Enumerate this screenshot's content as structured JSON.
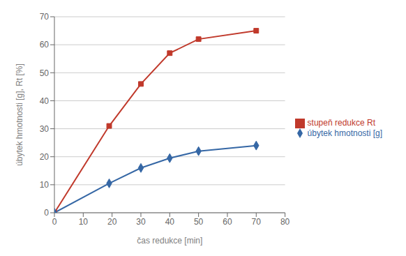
{
  "chart_data": {
    "type": "line",
    "x": [
      0,
      19,
      30,
      40,
      50,
      70
    ],
    "series": [
      {
        "name": "stupeň redukce Rt",
        "color": "#c0392b",
        "values": [
          0,
          31,
          46,
          57,
          62,
          65
        ],
        "marker": "square"
      },
      {
        "name": "úbytek hmotnosti [g]",
        "color": "#3567a5",
        "values": [
          0,
          10.5,
          16,
          19.5,
          22,
          24
        ],
        "marker": "diamond"
      }
    ],
    "xlabel": "čas redukce [min]",
    "ylabel": "úbytek hmotnosti [g], Rt [%]",
    "xlim": [
      0,
      80
    ],
    "ylim": [
      0,
      70
    ],
    "xticks": [
      0,
      10,
      20,
      30,
      40,
      50,
      60,
      70,
      80
    ],
    "yticks": [
      0,
      10,
      20,
      30,
      40,
      50,
      60,
      70
    ],
    "grid": true,
    "legend": "right"
  }
}
